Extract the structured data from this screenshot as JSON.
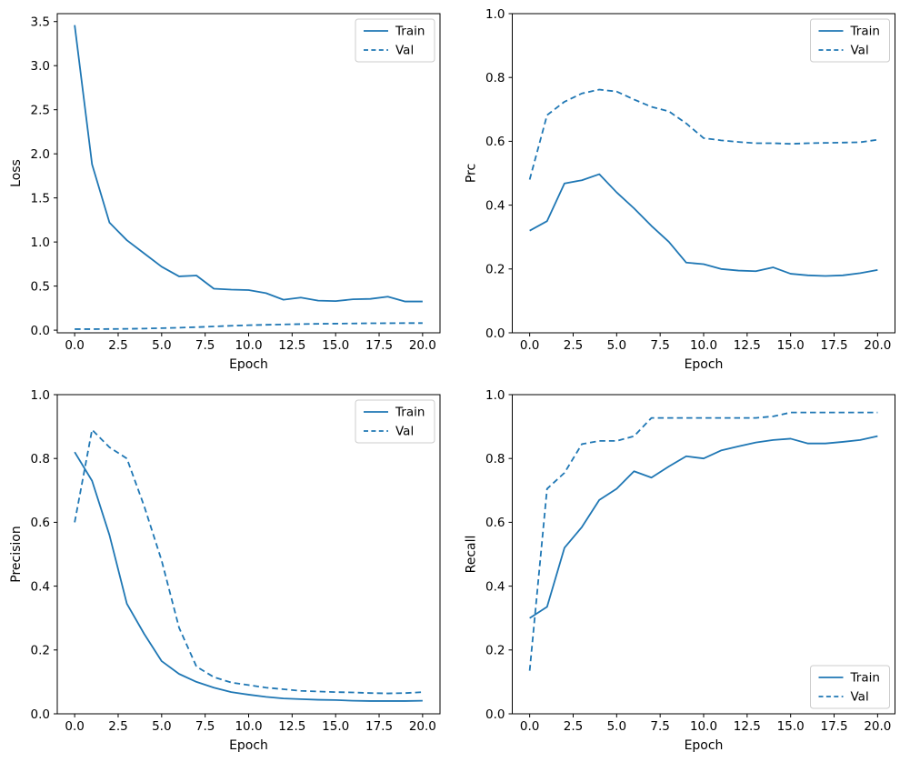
{
  "figure": {
    "background": "#ffffff",
    "accent_color": "#1f77b4",
    "text_color": "#000000",
    "spine_color": "#000000",
    "legend_border_color": "#cccccc"
  },
  "legend": {
    "train_label": "Train",
    "val_label": "Val"
  },
  "chart_data": [
    {
      "id": "loss",
      "type": "line",
      "title": "",
      "xlabel": "Epoch",
      "ylabel": "Loss",
      "xlim": [
        -1,
        21
      ],
      "ylim": [
        -0.03,
        3.59
      ],
      "xticks": [
        0,
        2.5,
        5,
        7.5,
        10,
        12.5,
        15,
        17.5,
        20
      ],
      "yticks": [
        0,
        0.5,
        1,
        1.5,
        2,
        2.5,
        3,
        3.5
      ],
      "grid": false,
      "legend_position": "upper-right",
      "x": [
        0,
        1,
        2,
        3,
        4,
        5,
        6,
        7,
        8,
        9,
        10,
        11,
        12,
        13,
        14,
        15,
        16,
        17,
        18,
        19,
        20
      ],
      "series": [
        {
          "name": "Train",
          "style": "solid",
          "color": "#1f77b4",
          "values": [
            3.46,
            1.88,
            1.22,
            1.02,
            0.87,
            0.72,
            0.61,
            0.62,
            0.47,
            0.46,
            0.455,
            0.42,
            0.345,
            0.37,
            0.335,
            0.33,
            0.35,
            0.355,
            0.38,
            0.325,
            0.325
          ]
        },
        {
          "name": "Val",
          "style": "dashed",
          "color": "#1f77b4",
          "values": [
            0.012,
            0.012,
            0.013,
            0.015,
            0.018,
            0.023,
            0.028,
            0.034,
            0.042,
            0.05,
            0.056,
            0.061,
            0.065,
            0.069,
            0.072,
            0.074,
            0.076,
            0.078,
            0.079,
            0.08,
            0.08
          ]
        }
      ]
    },
    {
      "id": "prc",
      "type": "line",
      "title": "",
      "xlabel": "Epoch",
      "ylabel": "Prc",
      "xlim": [
        -1,
        21
      ],
      "ylim": [
        0,
        1
      ],
      "xticks": [
        0,
        2.5,
        5,
        7.5,
        10,
        12.5,
        15,
        17.5,
        20
      ],
      "yticks": [
        0,
        0.2,
        0.4,
        0.6,
        0.8,
        1.0
      ],
      "grid": false,
      "legend_position": "upper-right",
      "x": [
        0,
        1,
        2,
        3,
        4,
        5,
        6,
        7,
        8,
        9,
        10,
        11,
        12,
        13,
        14,
        15,
        16,
        17,
        18,
        19,
        20
      ],
      "series": [
        {
          "name": "Train",
          "style": "solid",
          "color": "#1f77b4",
          "values": [
            0.32,
            0.35,
            0.468,
            0.478,
            0.497,
            0.44,
            0.39,
            0.335,
            0.285,
            0.22,
            0.215,
            0.2,
            0.195,
            0.193,
            0.205,
            0.185,
            0.18,
            0.178,
            0.18,
            0.187,
            0.197
          ]
        },
        {
          "name": "Val",
          "style": "dashed",
          "color": "#1f77b4",
          "values": [
            0.48,
            0.682,
            0.724,
            0.75,
            0.762,
            0.756,
            0.731,
            0.708,
            0.694,
            0.656,
            0.61,
            0.603,
            0.598,
            0.594,
            0.594,
            0.592,
            0.594,
            0.595,
            0.596,
            0.597,
            0.605
          ]
        }
      ]
    },
    {
      "id": "precision",
      "type": "line",
      "title": "",
      "xlabel": "Epoch",
      "ylabel": "Precision",
      "xlim": [
        -1,
        21
      ],
      "ylim": [
        0,
        1
      ],
      "xticks": [
        0,
        2.5,
        5,
        7.5,
        10,
        12.5,
        15,
        17.5,
        20
      ],
      "yticks": [
        0,
        0.2,
        0.4,
        0.6,
        0.8,
        1.0
      ],
      "grid": false,
      "legend_position": "upper-right",
      "x": [
        0,
        1,
        2,
        3,
        4,
        5,
        6,
        7,
        8,
        9,
        10,
        11,
        12,
        13,
        14,
        15,
        16,
        17,
        18,
        19,
        20
      ],
      "series": [
        {
          "name": "Train",
          "style": "solid",
          "color": "#1f77b4",
          "values": [
            0.82,
            0.73,
            0.56,
            0.345,
            0.25,
            0.165,
            0.125,
            0.1,
            0.082,
            0.068,
            0.06,
            0.053,
            0.048,
            0.046,
            0.044,
            0.043,
            0.041,
            0.04,
            0.04,
            0.04,
            0.041
          ]
        },
        {
          "name": "Val",
          "style": "dashed",
          "color": "#1f77b4",
          "values": [
            0.6,
            0.89,
            0.835,
            0.8,
            0.65,
            0.48,
            0.27,
            0.148,
            0.115,
            0.098,
            0.09,
            0.082,
            0.077,
            0.072,
            0.07,
            0.068,
            0.067,
            0.065,
            0.064,
            0.065,
            0.068
          ]
        }
      ]
    },
    {
      "id": "recall",
      "type": "line",
      "title": "",
      "xlabel": "Epoch",
      "ylabel": "Recall",
      "xlim": [
        -1,
        21
      ],
      "ylim": [
        0,
        1
      ],
      "xticks": [
        0,
        2.5,
        5,
        7.5,
        10,
        12.5,
        15,
        17.5,
        20
      ],
      "yticks": [
        0,
        0.2,
        0.4,
        0.6,
        0.8,
        1.0
      ],
      "grid": false,
      "legend_position": "lower-right",
      "x": [
        0,
        1,
        2,
        3,
        4,
        5,
        6,
        7,
        8,
        9,
        10,
        11,
        12,
        13,
        14,
        15,
        16,
        17,
        18,
        19,
        20
      ],
      "series": [
        {
          "name": "Train",
          "style": "solid",
          "color": "#1f77b4",
          "values": [
            0.3,
            0.335,
            0.52,
            0.585,
            0.67,
            0.705,
            0.76,
            0.74,
            0.775,
            0.807,
            0.8,
            0.825,
            0.838,
            0.85,
            0.858,
            0.862,
            0.847,
            0.847,
            0.852,
            0.858,
            0.87
          ]
        },
        {
          "name": "Val",
          "style": "dashed",
          "color": "#1f77b4",
          "values": [
            0.135,
            0.705,
            0.755,
            0.845,
            0.855,
            0.855,
            0.87,
            0.927,
            0.927,
            0.927,
            0.927,
            0.927,
            0.927,
            0.927,
            0.932,
            0.944,
            0.944,
            0.944,
            0.944,
            0.944,
            0.944
          ]
        }
      ]
    }
  ]
}
